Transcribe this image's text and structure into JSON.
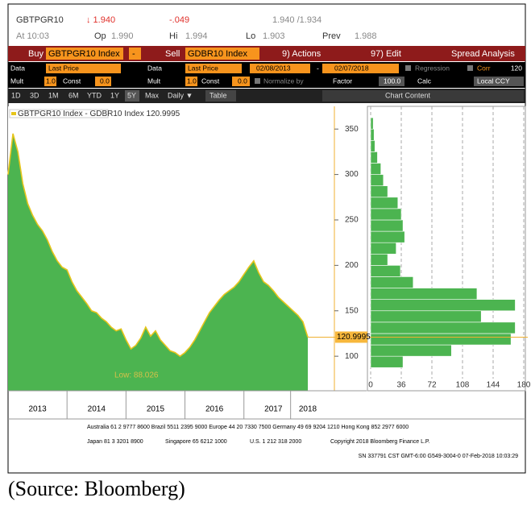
{
  "header": {
    "ticker": "GBTPGR10",
    "last": "↓ 1.940",
    "change": "-.049",
    "bid_ask": "1.940 /1.934",
    "time": "At 10:03",
    "open_label": "Op",
    "open": "1.990",
    "high_label": "Hi",
    "high": "1.994",
    "low_label": "Lo",
    "low": "1.903",
    "prev_label": "Prev",
    "prev": "1.988"
  },
  "command_bar": {
    "buy": "Buy",
    "buy_security": "GBTPGR10 Index",
    "operator": "-",
    "sell": "Sell",
    "sell_security": "GDBR10 Index",
    "actions": "9) Actions",
    "edit": "97) Edit",
    "title": "Spread Analysis"
  },
  "settings": {
    "data1": "Data",
    "field1": "Last Price",
    "data2": "Data",
    "field2": "Last Price",
    "start": "02/08/2013",
    "dash": "-",
    "end": "02/07/2018",
    "regression": "Regression",
    "corr": "Corr",
    "corr_value": "120",
    "mult1": "Mult",
    "mult1_value": "1.0",
    "const1": "Const",
    "const1_value": "0.0",
    "mult2": "Mult",
    "mult2_value": "1.0",
    "const2": "Const",
    "const2_value": "0.0",
    "normalize": "Normalize by",
    "factor": "Factor",
    "factor_value": "100.0",
    "calc": "Calc",
    "ccy": "Local CCY"
  },
  "toolbar": [
    "1D",
    "3D",
    "1M",
    "6M",
    "YTD",
    "1Y",
    "5Y",
    "Max",
    "Daily ▼",
    "Table",
    "«",
    "Chart Content"
  ],
  "chart_data": [
    {
      "type": "area",
      "categories": [
        null,
        null,
        null,
        null,
        null,
        null,
        "2013",
        null,
        null,
        null,
        null,
        null,
        null,
        null,
        null,
        null,
        null,
        null,
        "2014",
        null,
        null,
        null,
        null,
        null,
        null,
        null,
        null,
        null,
        null,
        null,
        "2015",
        null,
        null,
        null,
        null,
        null,
        null,
        null,
        null,
        null,
        null,
        null,
        "2016",
        null,
        null,
        null,
        null,
        null,
        null,
        null,
        null,
        null,
        null,
        null,
        "2017",
        null,
        null,
        null,
        null,
        null,
        null,
        "2018"
      ],
      "series": [
        {
          "name": "GBTPGR10 Index - GDBR10 Index 120.9995",
          "color": "#4cb450",
          "line_color": "#e6c51c",
          "values": [
            300,
            345,
            325,
            290,
            268,
            255,
            245,
            238,
            228,
            215,
            205,
            198,
            195,
            182,
            172,
            165,
            158,
            150,
            148,
            142,
            138,
            132,
            128,
            130,
            118,
            108,
            112,
            120,
            132,
            122,
            128,
            118,
            112,
            106,
            104,
            100,
            104,
            110,
            118,
            128,
            138,
            148,
            155,
            162,
            168,
            172,
            176,
            182,
            190,
            198,
            205,
            192,
            182,
            178,
            172,
            165,
            160,
            155,
            150,
            145,
            138,
            121
          ]
        }
      ],
      "low_annotation": "Low: 88.026",
      "last_label": "120.9995",
      "ylim": [
        62,
        375
      ],
      "yticks": [
        100,
        150,
        200,
        250,
        300,
        350
      ]
    },
    {
      "type": "histogram",
      "orientation": "horizontal",
      "color": "#4cb450",
      "bins": [
        87.5,
        100,
        112.5,
        125,
        137.5,
        150,
        162.5,
        175,
        187.5,
        200,
        212.5,
        225,
        237.5,
        250,
        262.5,
        275,
        287.5,
        300,
        312.5,
        325,
        337.5,
        350,
        362.5
      ],
      "counts": [
        38,
        95,
        165,
        170,
        130,
        170,
        125,
        50,
        35,
        20,
        30,
        40,
        38,
        36,
        32,
        20,
        15,
        12,
        8,
        5,
        4,
        3
      ],
      "xlim": [
        0,
        180
      ],
      "xticks": [
        0,
        36,
        72,
        108,
        144,
        180
      ],
      "ylim": [
        62,
        375
      ],
      "grid": true
    }
  ],
  "footer": {
    "line1": "Australia 61 2 9777 8600 Brazil 5511 2395 9000 Europe 44 20 7330 7500 Germany 49 69 9204 1210 Hong Kong 852 2977 6000",
    "line2": [
      "Japan 81 3 3201 8900",
      "Singapore 65 6212 1000",
      "U.S. 1 212 318 2000",
      "Copyright 2018 Bloomberg Finance L.P."
    ],
    "line3": "SN 337791 CST  GMT-6:00 G549-3004-0 07-Feb-2018 10:03:29"
  },
  "caption": "(Source: Bloomberg)"
}
